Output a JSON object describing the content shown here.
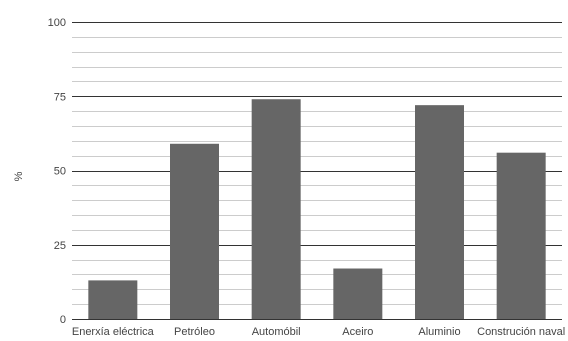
{
  "chart_data": {
    "type": "bar",
    "categories": [
      "Enerxía eléctrica",
      "Petróleo",
      "Automóbil",
      "Aceiro",
      "Aluminio",
      "Construción naval"
    ],
    "values": [
      13,
      59,
      74,
      17,
      72,
      56
    ],
    "ylabel": "%",
    "ylim": [
      0,
      100
    ],
    "yticks": [
      0,
      25,
      50,
      75,
      100
    ],
    "grid": true,
    "bar_color": "#666666",
    "major_grid_color": "#333333",
    "minor_grid_color": "#cccccc"
  }
}
